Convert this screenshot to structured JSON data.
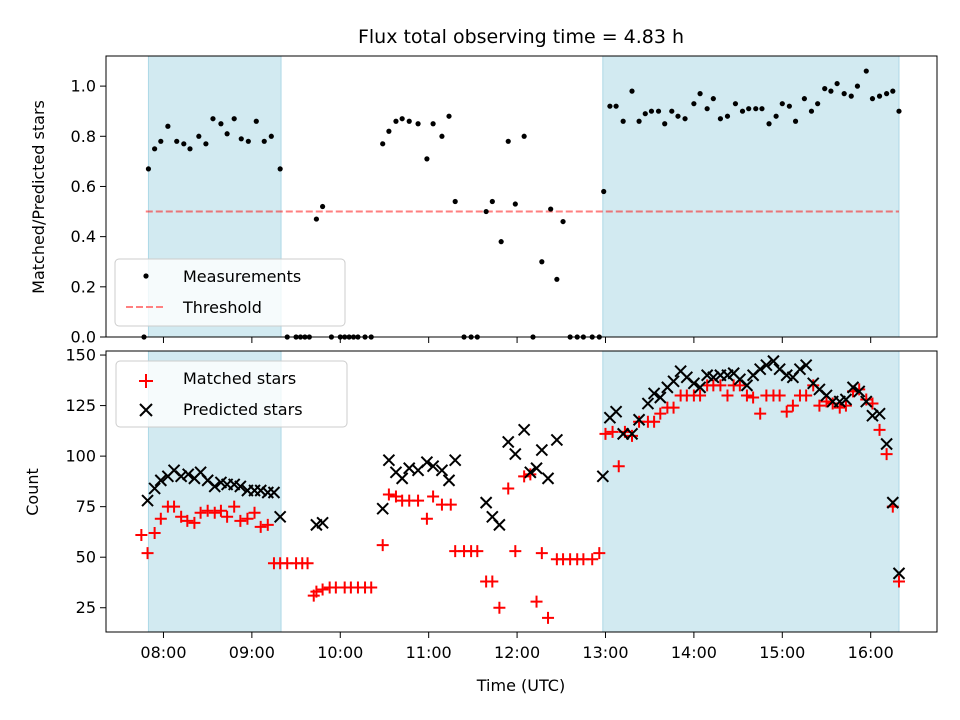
{
  "chart_data": {
    "title": "Flux total observing time = 4.83 h",
    "xlabel": "Time (UTC)",
    "x_unit": "hours UTC",
    "xlim": [
      7.35,
      16.75
    ],
    "x_ticks": [
      {
        "value": 8,
        "label": "08:00"
      },
      {
        "value": 9,
        "label": "09:00"
      },
      {
        "value": 10,
        "label": "10:00"
      },
      {
        "value": 11,
        "label": "11:00"
      },
      {
        "value": 12,
        "label": "12:00"
      },
      {
        "value": 13,
        "label": "13:00"
      },
      {
        "value": 14,
        "label": "14:00"
      },
      {
        "value": 15,
        "label": "15:00"
      },
      {
        "value": 16,
        "label": "16:00"
      }
    ],
    "observing_windows": [
      [
        7.83,
        9.33
      ],
      [
        12.97,
        16.32
      ]
    ],
    "window_color": "#add8e6",
    "panels": [
      {
        "type": "scatter",
        "ylabel": "Matched/Predicted stars",
        "ylim": [
          0,
          1.12
        ],
        "y_ticks": [
          {
            "value": 0.0,
            "label": "0.0"
          },
          {
            "value": 0.2,
            "label": "0.2"
          },
          {
            "value": 0.4,
            "label": "0.4"
          },
          {
            "value": 0.6,
            "label": "0.6"
          },
          {
            "value": 0.8,
            "label": "0.8"
          },
          {
            "value": 1.0,
            "label": "1.0"
          }
        ],
        "threshold": {
          "name": "Threshold",
          "y": 0.5,
          "x_range": [
            7.8,
            16.32
          ],
          "color": "#ff0000",
          "alpha": 0.5
        },
        "series": [
          {
            "name": "Measurements",
            "marker": "dot",
            "color": "#000000",
            "x": [
              7.78,
              7.83,
              7.9,
              7.97,
              8.05,
              8.15,
              8.23,
              8.3,
              8.4,
              8.48,
              8.56,
              8.65,
              8.72,
              8.8,
              8.88,
              8.96,
              9.05,
              9.14,
              9.22,
              9.32,
              9.4,
              9.5,
              9.55,
              9.6,
              9.65,
              9.73,
              9.8,
              9.9,
              10.0,
              10.05,
              10.1,
              10.15,
              10.2,
              10.28,
              10.35,
              10.48,
              10.55,
              10.63,
              10.7,
              10.78,
              10.88,
              10.98,
              11.05,
              11.15,
              11.23,
              11.3,
              11.4,
              11.48,
              11.55,
              11.65,
              11.72,
              11.82,
              11.9,
              11.98,
              12.08,
              12.18,
              12.28,
              12.38,
              12.45,
              12.52,
              12.6,
              12.68,
              12.75,
              12.85,
              12.93,
              12.98,
              13.05,
              13.12,
              13.2,
              13.3,
              13.38,
              13.45,
              13.52,
              13.6,
              13.67,
              13.75,
              13.82,
              13.9,
              14.0,
              14.07,
              14.15,
              14.22,
              14.3,
              14.38,
              14.47,
              14.55,
              14.62,
              14.7,
              14.77,
              14.85,
              14.93,
              15.0,
              15.08,
              15.15,
              15.25,
              15.33,
              15.4,
              15.48,
              15.55,
              15.62,
              15.7,
              15.78,
              15.85,
              15.95,
              16.02,
              16.1,
              16.18,
              16.25,
              16.32
            ],
            "y": [
              0.0,
              0.67,
              0.75,
              0.78,
              0.84,
              0.78,
              0.77,
              0.75,
              0.8,
              0.77,
              0.87,
              0.85,
              0.81,
              0.87,
              0.79,
              0.78,
              0.86,
              0.78,
              0.8,
              0.67,
              0.0,
              0.0,
              0.0,
              0.0,
              0.0,
              0.47,
              0.52,
              0.0,
              0.0,
              0.0,
              0.0,
              0.0,
              0.0,
              0.0,
              0.0,
              0.77,
              0.82,
              0.86,
              0.87,
              0.86,
              0.85,
              0.71,
              0.85,
              0.8,
              0.88,
              0.54,
              0.0,
              0.0,
              0.0,
              0.5,
              0.54,
              0.38,
              0.78,
              0.53,
              0.8,
              0.0,
              0.3,
              0.51,
              0.23,
              0.46,
              0.0,
              0.0,
              0.0,
              0.0,
              0.0,
              0.58,
              0.92,
              0.92,
              0.86,
              0.98,
              0.86,
              0.89,
              0.9,
              0.9,
              0.85,
              0.9,
              0.88,
              0.87,
              0.93,
              0.97,
              0.91,
              0.95,
              0.87,
              0.88,
              0.93,
              0.9,
              0.91,
              0.91,
              0.91,
              0.85,
              0.88,
              0.93,
              0.92,
              0.86,
              0.95,
              0.9,
              0.93,
              0.99,
              0.98,
              1.01,
              0.97,
              0.96,
              1.0,
              1.06,
              0.95,
              0.96,
              0.97,
              0.98,
              0.9
            ]
          }
        ],
        "legend": {
          "position": "lower-left",
          "entries": [
            "Measurements",
            "Threshold"
          ]
        }
      },
      {
        "type": "scatter",
        "ylabel": "Count",
        "ylim": [
          13,
          152
        ],
        "y_ticks": [
          {
            "value": 25,
            "label": "25"
          },
          {
            "value": 50,
            "label": "50"
          },
          {
            "value": 75,
            "label": "75"
          },
          {
            "value": 100,
            "label": "100"
          },
          {
            "value": 125,
            "label": "125"
          },
          {
            "value": 150,
            "label": "150"
          }
        ],
        "series": [
          {
            "name": "Matched stars",
            "marker": "plus",
            "color": "#ff0000",
            "x": [
              7.75,
              7.82,
              7.9,
              7.97,
              8.05,
              8.12,
              8.2,
              8.27,
              8.35,
              8.42,
              8.5,
              8.58,
              8.65,
              8.72,
              8.8,
              8.87,
              8.95,
              9.03,
              9.1,
              9.18,
              9.25,
              9.32,
              9.4,
              9.5,
              9.57,
              9.63,
              9.7,
              9.73,
              9.8,
              9.88,
              9.95,
              10.05,
              10.12,
              10.2,
              10.28,
              10.35,
              10.48,
              10.55,
              10.63,
              10.7,
              10.78,
              10.88,
              10.98,
              11.05,
              11.15,
              11.25,
              11.3,
              11.4,
              11.48,
              11.55,
              11.65,
              11.72,
              11.8,
              11.9,
              11.98,
              12.08,
              12.15,
              12.22,
              12.28,
              12.35,
              12.45,
              12.52,
              12.6,
              12.68,
              12.75,
              12.85,
              12.93,
              13.0,
              13.08,
              13.15,
              13.22,
              13.3,
              13.38,
              13.48,
              13.55,
              13.62,
              13.7,
              13.77,
              13.85,
              13.92,
              14.0,
              14.07,
              14.15,
              14.22,
              14.3,
              14.38,
              14.45,
              14.52,
              14.6,
              14.67,
              14.75,
              14.82,
              14.9,
              14.97,
              15.05,
              15.12,
              15.2,
              15.27,
              15.35,
              15.42,
              15.5,
              15.57,
              15.65,
              15.72,
              15.8,
              15.87,
              15.95,
              16.02,
              16.1,
              16.18,
              16.25,
              16.32
            ],
            "y": [
              61,
              52,
              62,
              69,
              75,
              75,
              70,
              68,
              67,
              72,
              73,
              72,
              73,
              70,
              75,
              68,
              69,
              72,
              65,
              66,
              47,
              47,
              47,
              47,
              47,
              47,
              31,
              33,
              34,
              35,
              35,
              35,
              35,
              35,
              35,
              35,
              56,
              81,
              80,
              78,
              78,
              78,
              69,
              80,
              76,
              76,
              53,
              53,
              53,
              53,
              38,
              38,
              25,
              84,
              53,
              90,
              91,
              28,
              52,
              20,
              49,
              49,
              49,
              49,
              49,
              49,
              52,
              111,
              112,
              95,
              112,
              110,
              117,
              117,
              117,
              121,
              124,
              124,
              130,
              130,
              130,
              130,
              135,
              135,
              135,
              130,
              135,
              135,
              130,
              129,
              121,
              130,
              130,
              130,
              122,
              125,
              130,
              130,
              135,
              125,
              127,
              126,
              124,
              125,
              132,
              133,
              128,
              126,
              113,
              101,
              75,
              38
            ]
          },
          {
            "name": "Predicted stars",
            "marker": "x",
            "color": "#000000",
            "x": [
              7.82,
              7.9,
              7.97,
              8.05,
              8.12,
              8.2,
              8.28,
              8.35,
              8.42,
              8.5,
              8.58,
              8.65,
              8.72,
              8.8,
              8.87,
              8.95,
              9.03,
              9.1,
              9.18,
              9.25,
              9.32,
              9.73,
              9.8,
              10.48,
              10.55,
              10.63,
              10.7,
              10.78,
              10.88,
              10.98,
              11.05,
              11.15,
              11.23,
              11.3,
              11.65,
              11.72,
              11.8,
              11.9,
              11.98,
              12.08,
              12.15,
              12.22,
              12.28,
              12.35,
              12.45,
              12.97,
              13.05,
              13.12,
              13.2,
              13.3,
              13.38,
              13.48,
              13.55,
              13.62,
              13.7,
              13.77,
              13.85,
              13.92,
              14.0,
              14.07,
              14.15,
              14.22,
              14.3,
              14.38,
              14.45,
              14.52,
              14.6,
              14.67,
              14.75,
              14.82,
              14.9,
              14.97,
              15.05,
              15.12,
              15.2,
              15.27,
              15.35,
              15.42,
              15.5,
              15.57,
              15.65,
              15.72,
              15.8,
              15.87,
              15.95,
              16.02,
              16.1,
              16.18,
              16.25,
              16.32
            ],
            "y": [
              78,
              84,
              88,
              90,
              93,
              90,
              91,
              89,
              92,
              88,
              85,
              87,
              86,
              86,
              85,
              83,
              83,
              83,
              82,
              82,
              70,
              66,
              67,
              74,
              98,
              92,
              89,
              94,
              93,
              97,
              95,
              93,
              88,
              98,
              77,
              70,
              66,
              107,
              101,
              113,
              92,
              94,
              103,
              89,
              108,
              90,
              119,
              122,
              111,
              111,
              118,
              126,
              131,
              129,
              134,
              137,
              142,
              139,
              136,
              134,
              140,
              139,
              140,
              140,
              141,
              138,
              135,
              140,
              143,
              145,
              147,
              143,
              140,
              139,
              143,
              145,
              136,
              133,
              130,
              127,
              127,
              128,
              134,
              132,
              127,
              120,
              121,
              106,
              77,
              42
            ]
          }
        ],
        "legend": {
          "position": "upper-left",
          "entries": [
            "Matched stars",
            "Predicted stars"
          ]
        }
      }
    ]
  }
}
